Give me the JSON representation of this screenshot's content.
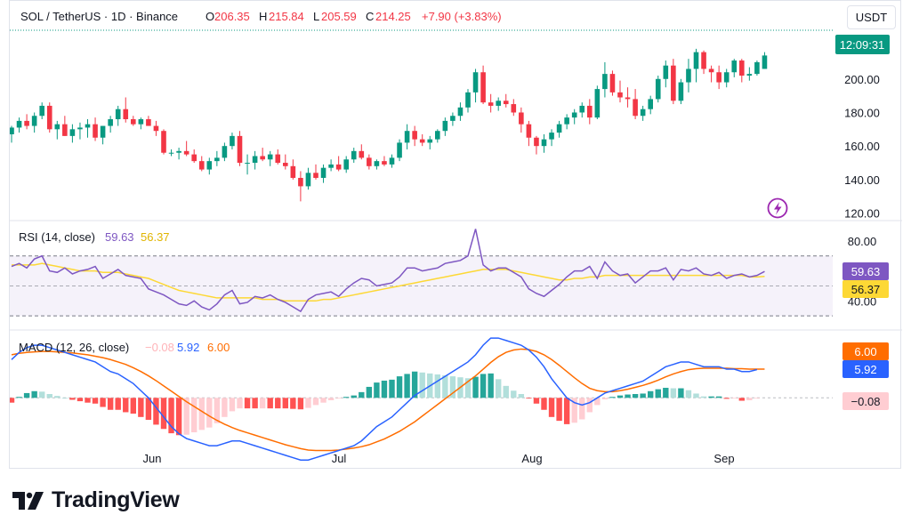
{
  "header": {
    "symbol": "SOL / TetherUS · 1D · Binance",
    "o_label": "O",
    "o_value": "206.35",
    "h_label": "H",
    "h_value": "215.84",
    "l_label": "L",
    "l_value": "205.59",
    "c_label": "C",
    "c_value": "214.25",
    "change": "+7.90 (+3.83%)"
  },
  "currency_button": "USDT",
  "price_axis": {
    "ticks": [
      "200.00",
      "180.00",
      "160.00",
      "140.00",
      "120.00"
    ],
    "tick_values": [
      200,
      180,
      160,
      140,
      120
    ],
    "countdown": "12:09:31"
  },
  "rsi": {
    "label": "RSI (14, close)",
    "value": "59.63",
    "ma_value": "56.37",
    "ticks": [
      "80.00",
      "40.00"
    ],
    "tick_values": [
      80,
      40
    ]
  },
  "macd": {
    "label": "MACD (12, 26, close)",
    "hist_value": "−0.08",
    "macd_value": "5.92",
    "signal_value": "6.00"
  },
  "time_axis": [
    "Jun",
    "Jul",
    "Aug",
    "Sep"
  ],
  "colors": {
    "up": "#089981",
    "down": "#f23645",
    "rsi_line": "#7e57c2",
    "rsi_ma": "#fdd835",
    "macd_line": "#2962ff",
    "signal_line": "#ff6d00",
    "hist_up_strong": "#26a69a",
    "hist_up_weak": "#b2dfdb",
    "hist_down_strong": "#ff5252",
    "hist_down_weak": "#ffcdd2",
    "label_red": "#f23645",
    "label_orange": "#ff9800",
    "label_blue": "#2962ff"
  },
  "icons": {
    "lightning": "lightning-icon",
    "logo": "tradingview-logo-icon"
  },
  "logo_text": "TradingView",
  "chart_data": {
    "type": "candlestick",
    "symbol": "SOL / TetherUS",
    "interval": "1D",
    "price_ylim": [
      115,
      228
    ],
    "rsi_ylim": [
      20,
      93
    ],
    "rsi_bands": [
      70,
      50,
      30
    ],
    "macd_ylim": [
      -15,
      14
    ],
    "candles": [
      [
        167,
        172,
        162,
        171
      ],
      [
        171,
        177,
        168,
        175
      ],
      [
        175,
        179,
        170,
        172
      ],
      [
        172,
        180,
        168,
        178
      ],
      [
        178,
        186,
        176,
        184
      ],
      [
        184,
        186,
        168,
        170
      ],
      [
        170,
        175,
        164,
        173
      ],
      [
        173,
        178,
        166,
        166
      ],
      [
        166,
        173,
        162,
        170
      ],
      [
        170,
        174,
        164,
        171
      ],
      [
        171,
        176,
        165,
        173
      ],
      [
        173,
        177,
        163,
        165
      ],
      [
        165,
        172,
        161,
        172
      ],
      [
        172,
        178,
        168,
        176
      ],
      [
        176,
        184,
        172,
        182
      ],
      [
        182,
        189,
        174,
        176
      ],
      [
        176,
        178,
        172,
        173
      ],
      [
        173,
        177,
        170,
        176
      ],
      [
        176,
        178,
        172,
        172
      ],
      [
        172,
        175,
        166,
        169
      ],
      [
        169,
        170,
        155,
        156
      ],
      [
        156,
        158,
        154,
        156
      ],
      [
        156,
        159,
        152,
        157
      ],
      [
        157,
        163,
        154,
        155
      ],
      [
        155,
        158,
        150,
        151
      ],
      [
        151,
        154,
        145,
        146
      ],
      [
        146,
        153,
        143,
        151
      ],
      [
        151,
        157,
        148,
        153
      ],
      [
        153,
        162,
        151,
        160
      ],
      [
        160,
        168,
        158,
        166
      ],
      [
        166,
        169,
        148,
        150
      ],
      [
        150,
        155,
        143,
        150
      ],
      [
        150,
        157,
        146,
        154
      ],
      [
        154,
        159,
        151,
        152
      ],
      [
        152,
        157,
        148,
        155
      ],
      [
        155,
        158,
        149,
        150
      ],
      [
        150,
        155,
        146,
        148
      ],
      [
        148,
        152,
        140,
        141
      ],
      [
        141,
        145,
        127,
        136
      ],
      [
        136,
        147,
        134,
        144
      ],
      [
        144,
        149,
        140,
        141
      ],
      [
        141,
        149,
        138,
        147
      ],
      [
        147,
        152,
        145,
        149
      ],
      [
        149,
        154,
        145,
        146
      ],
      [
        146,
        154,
        144,
        152
      ],
      [
        152,
        159,
        150,
        157
      ],
      [
        157,
        161,
        152,
        153
      ],
      [
        153,
        155,
        146,
        148
      ],
      [
        148,
        152,
        146,
        151
      ],
      [
        151,
        154,
        148,
        149
      ],
      [
        149,
        155,
        147,
        153
      ],
      [
        153,
        164,
        151,
        162
      ],
      [
        162,
        173,
        158,
        169
      ],
      [
        169,
        172,
        160,
        164
      ],
      [
        164,
        167,
        160,
        162
      ],
      [
        162,
        166,
        158,
        164
      ],
      [
        164,
        170,
        162,
        169
      ],
      [
        169,
        177,
        166,
        175
      ],
      [
        175,
        180,
        172,
        178
      ],
      [
        178,
        186,
        175,
        183
      ],
      [
        183,
        194,
        180,
        192
      ],
      [
        192,
        206,
        186,
        204
      ],
      [
        204,
        208,
        185,
        186
      ],
      [
        186,
        191,
        180,
        184
      ],
      [
        184,
        189,
        181,
        187
      ],
      [
        187,
        191,
        183,
        185
      ],
      [
        185,
        188,
        178,
        180
      ],
      [
        180,
        183,
        168,
        173
      ],
      [
        173,
        175,
        160,
        165
      ],
      [
        165,
        166,
        155,
        160
      ],
      [
        160,
        167,
        156,
        164
      ],
      [
        164,
        170,
        160,
        168
      ],
      [
        168,
        175,
        165,
        173
      ],
      [
        173,
        179,
        170,
        177
      ],
      [
        177,
        182,
        173,
        180
      ],
      [
        180,
        186,
        177,
        184
      ],
      [
        184,
        188,
        173,
        177
      ],
      [
        177,
        196,
        176,
        194
      ],
      [
        194,
        210,
        189,
        203
      ],
      [
        203,
        205,
        190,
        192
      ],
      [
        192,
        199,
        186,
        189
      ],
      [
        189,
        195,
        183,
        188
      ],
      [
        188,
        194,
        176,
        178
      ],
      [
        178,
        184,
        175,
        182
      ],
      [
        182,
        190,
        179,
        188
      ],
      [
        188,
        202,
        186,
        200
      ],
      [
        200,
        211,
        195,
        208
      ],
      [
        208,
        212,
        185,
        187
      ],
      [
        187,
        200,
        185,
        198
      ],
      [
        198,
        212,
        192,
        206
      ],
      [
        206,
        218,
        198,
        216
      ],
      [
        216,
        217,
        203,
        206
      ],
      [
        206,
        208,
        198,
        204
      ],
      [
        204,
        208,
        194,
        198
      ],
      [
        198,
        206,
        195,
        204
      ],
      [
        204,
        212,
        201,
        211
      ],
      [
        211,
        212,
        198,
        202
      ],
      [
        202,
        207,
        199,
        203
      ],
      [
        203,
        211,
        202,
        210
      ],
      [
        206,
        216,
        206,
        214
      ]
    ],
    "rsi_series": [
      63,
      65,
      62,
      68,
      70,
      60,
      59,
      62,
      58,
      60,
      61,
      63,
      55,
      58,
      61,
      57,
      56,
      55,
      48,
      46,
      44,
      41,
      38,
      37,
      40,
      36,
      34,
      38,
      44,
      47,
      38,
      39,
      43,
      42,
      44,
      41,
      39,
      36,
      33,
      41,
      44,
      45,
      46,
      43,
      48,
      52,
      55,
      54,
      50,
      51,
      52,
      56,
      62,
      62,
      60,
      61,
      62,
      65,
      66,
      67,
      70,
      88,
      64,
      60,
      62,
      62,
      59,
      56,
      48,
      45,
      43,
      47,
      51,
      56,
      60,
      60,
      63,
      55,
      66,
      60,
      57,
      58,
      52,
      56,
      60,
      60,
      62,
      54,
      61,
      60,
      62,
      58,
      57,
      59,
      55,
      57,
      58,
      56,
      57,
      59.63
    ],
    "rsi_ma_series": [
      64,
      64,
      64,
      64,
      65,
      64,
      63,
      62,
      61,
      60,
      60,
      60,
      59,
      59,
      59,
      58,
      57,
      56,
      55,
      53,
      51,
      49,
      47,
      46,
      45,
      44,
      43,
      42,
      42,
      42,
      42,
      42,
      42,
      41,
      41,
      41,
      40,
      40,
      40,
      40,
      40,
      41,
      41,
      42,
      43,
      44,
      45,
      46,
      47,
      48,
      49,
      50,
      51,
      52,
      53,
      54,
      55,
      56,
      57,
      58,
      59,
      60,
      61,
      61,
      61,
      61,
      60,
      59,
      58,
      57,
      56,
      55,
      54,
      54,
      55,
      55,
      56,
      56,
      57,
      57,
      57,
      57,
      57,
      57,
      57,
      57,
      57,
      57,
      57,
      57,
      57,
      57,
      57,
      57,
      57,
      57,
      57,
      56,
      56,
      56.37
    ],
    "macd_series": [
      8,
      9.5,
      10.5,
      11,
      11,
      10.5,
      10,
      9.5,
      9,
      8.5,
      8,
      7.5,
      6.5,
      5.5,
      5,
      4,
      3,
      1.5,
      0,
      -2,
      -4,
      -6,
      -7.5,
      -8.5,
      -9,
      -9.5,
      -10,
      -10,
      -9.5,
      -9,
      -9,
      -9.5,
      -10,
      -10.5,
      -11,
      -11.5,
      -12,
      -12.5,
      -13,
      -13,
      -12.5,
      -12,
      -11.5,
      -11,
      -10.5,
      -10,
      -9,
      -7.5,
      -6,
      -5,
      -4,
      -2.5,
      -1,
      0.5,
      1.5,
      2.5,
      3.5,
      4.5,
      5.5,
      6.5,
      7.5,
      9,
      11,
      12.5,
      12.5,
      12,
      11.5,
      11,
      10,
      8.5,
      6.5,
      4,
      2,
      0,
      -1,
      -1.5,
      -1,
      0,
      1,
      1.5,
      2,
      2.5,
      3,
      3.5,
      4.5,
      5.5,
      6.5,
      7,
      7.5,
      7.5,
      7,
      6.5,
      6.5,
      6.5,
      6,
      6,
      5.5,
      5.5,
      5.92
    ],
    "signal_series": [
      9,
      9.3,
      9.5,
      9.6,
      9.7,
      9.7,
      9.6,
      9.5,
      9.4,
      9.2,
      9,
      8.7,
      8.4,
      8,
      7.5,
      7,
      6.3,
      5.5,
      4.6,
      3.6,
      2.5,
      1.4,
      0.3,
      -0.8,
      -1.8,
      -2.8,
      -3.8,
      -4.7,
      -5.5,
      -6.2,
      -6.8,
      -7.3,
      -7.8,
      -8.3,
      -8.8,
      -9.3,
      -9.8,
      -10.2,
      -10.6,
      -10.9,
      -11,
      -11,
      -11,
      -10.9,
      -10.7,
      -10.5,
      -10.2,
      -9.8,
      -9.2,
      -8.6,
      -7.8,
      -7,
      -6,
      -5,
      -3.8,
      -2.6,
      -1.4,
      -0.2,
      1,
      2.2,
      3.4,
      4.6,
      6,
      7.4,
      8.6,
      9.5,
      10,
      10.2,
      10.1,
      9.7,
      9,
      8,
      6.8,
      5.5,
      4.2,
      3,
      2,
      1.5,
      1.3,
      1.3,
      1.5,
      1.8,
      2.2,
      2.6,
      3.1,
      3.7,
      4.4,
      5,
      5.5,
      5.9,
      6.1,
      6.2,
      6.2,
      6.2,
      6.2,
      6.1,
      6.1,
      6,
      6,
      6.0
    ]
  }
}
